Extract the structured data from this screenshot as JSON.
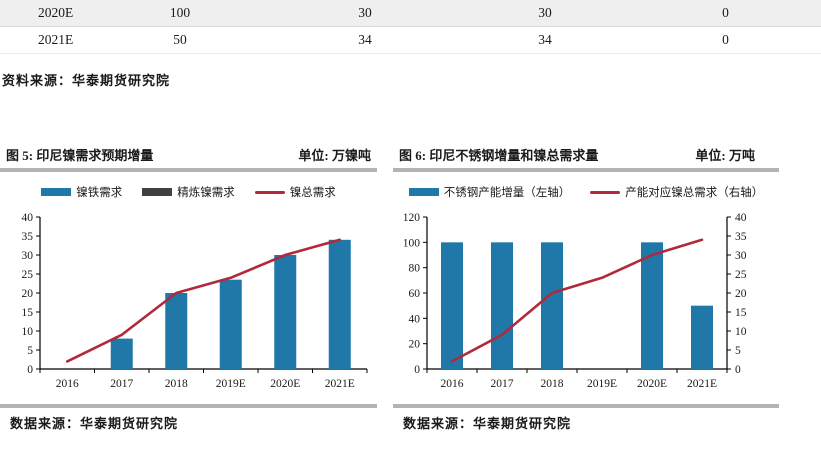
{
  "table": {
    "rows": [
      {
        "cells": [
          "2020E",
          "100",
          "30",
          "30",
          "0"
        ]
      },
      {
        "cells": [
          "2021E",
          "50",
          "34",
          "34",
          "0"
        ]
      }
    ],
    "source": "资料来源：华泰期货研究院"
  },
  "colors": {
    "bar_blue": "#1f78a8",
    "bar_gray": "#404040",
    "line_red": "#b02a3c",
    "divider_gray": "#b3b3b3",
    "alt_row_bg": "#f0efef"
  },
  "chart_data": [
    {
      "type": "bar",
      "title": "图 5: 印尼镍需求预期增量",
      "unit": "单位: 万镍吨",
      "categories": [
        "2016",
        "2017",
        "2018",
        "2019E",
        "2020E",
        "2021E"
      ],
      "left_axis": {
        "min": 0,
        "max": 40,
        "ticks": [
          0,
          5,
          10,
          15,
          20,
          25,
          30,
          35,
          40
        ]
      },
      "grid": "off",
      "legend_position": "top",
      "series": [
        {
          "name": "镍铁需求",
          "type": "bar",
          "axis": "left",
          "color": "#1f78a8",
          "values": [
            0,
            8,
            20,
            23.5,
            30,
            34
          ]
        },
        {
          "name": "精炼镍需求",
          "type": "bar",
          "axis": "left",
          "color": "#404040",
          "values": [
            0,
            0,
            0,
            0,
            0,
            0
          ]
        },
        {
          "name": "镍总需求",
          "type": "line",
          "axis": "left",
          "color": "#b02a3c",
          "values": [
            2,
            9,
            20,
            24,
            30,
            34
          ]
        }
      ],
      "source": "数据来源：华泰期货研究院"
    },
    {
      "type": "bar",
      "title": "图 6: 印尼不锈钢增量和镍总需求量",
      "unit": "单位: 万吨",
      "categories": [
        "2016",
        "2017",
        "2018",
        "2019E",
        "2020E",
        "2021E"
      ],
      "left_axis": {
        "min": 0,
        "max": 120,
        "ticks": [
          0,
          20,
          40,
          60,
          80,
          100,
          120
        ]
      },
      "right_axis": {
        "min": 0,
        "max": 40,
        "ticks": [
          0,
          5,
          10,
          15,
          20,
          25,
          30,
          35,
          40
        ]
      },
      "grid": "off",
      "legend_position": "top",
      "series": [
        {
          "name": "不锈钢产能增量（左轴）",
          "type": "bar",
          "axis": "left",
          "color": "#1f78a8",
          "values": [
            100,
            100,
            100,
            0,
            100,
            50
          ]
        },
        {
          "name": "产能对应镍总需求（右轴）",
          "type": "line",
          "axis": "right",
          "color": "#b02a3c",
          "values": [
            2,
            9,
            20,
            24,
            30,
            34
          ]
        }
      ],
      "source": "数据来源：华泰期货研究院"
    }
  ]
}
